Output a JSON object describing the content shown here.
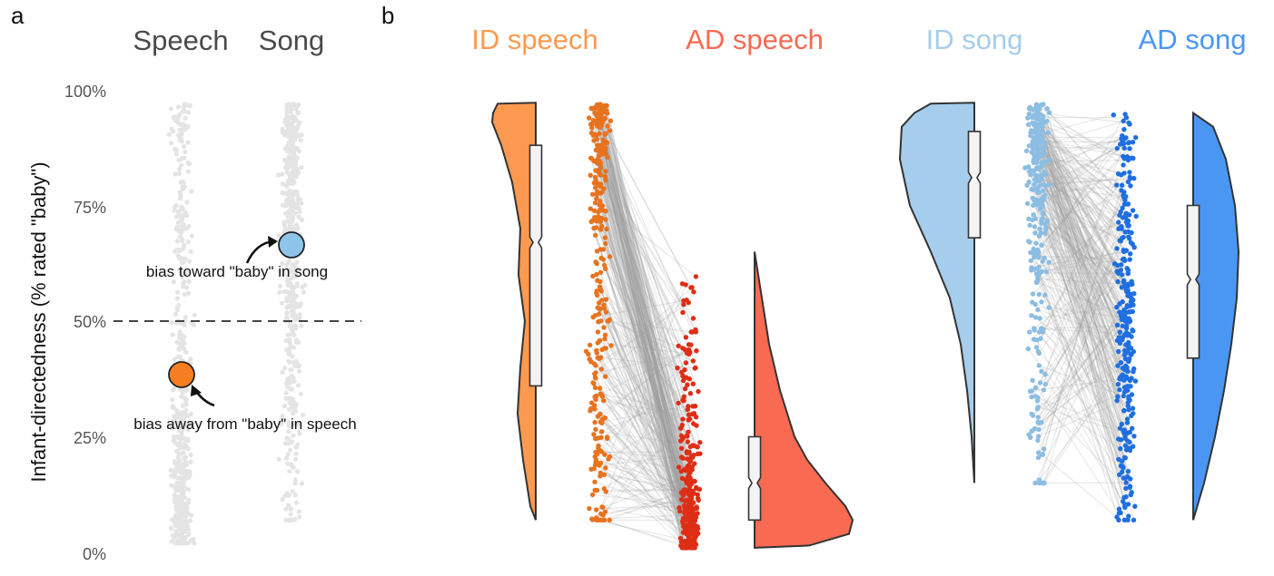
{
  "colors": {
    "id_speech": "#fb9a50",
    "ad_speech": "#f86a52",
    "id_song": "#a6cdec",
    "ad_song": "#4a97f3",
    "id_speech_dots": "#e8731f",
    "ad_speech_dots": "#de2e16",
    "id_song_dots": "#8cbde3",
    "ad_song_dots": "#1f6fe0",
    "bias_speech": "#f57f20",
    "bias_song": "#8ec4ea",
    "jitter_gray": "#e4e4e4"
  },
  "panel_a": {
    "letter": "a",
    "groups": [
      "Speech",
      "Song"
    ],
    "ylabel": "Infant-directedness (% rated \"baby\")",
    "y_ticks": [
      "100%",
      "75%",
      "50%",
      "25%",
      "0%"
    ],
    "reference_line": 50,
    "annotations": [
      "bias toward \"baby\" in song",
      "bias away from \"baby\" in speech"
    ]
  },
  "panel_b": {
    "letter": "b",
    "conditions": [
      "ID speech",
      "AD speech",
      "ID song",
      "AD song"
    ]
  },
  "chart_data": [
    {
      "type": "scatter",
      "panel": "a",
      "categories": [
        "Speech",
        "Song"
      ],
      "ylim": [
        0,
        100
      ],
      "reference_line": 50,
      "series": [
        {
          "name": "Speech",
          "mean": 39
        },
        {
          "name": "Song",
          "mean": 67
        }
      ],
      "annotations": [
        "bias toward \"baby\" in song",
        "bias away from \"baby\" in speech"
      ]
    },
    {
      "type": "violin",
      "panel": "b",
      "categories": [
        "ID speech",
        "AD speech",
        "ID song",
        "AD song"
      ],
      "ylim": [
        0,
        100
      ],
      "series": [
        {
          "name": "ID speech",
          "range": [
            7,
            97
          ],
          "q1": 36,
          "median": 67,
          "q3": 88
        },
        {
          "name": "AD speech",
          "range": [
            1,
            65
          ],
          "q1": 7,
          "median": 15,
          "q3": 25
        },
        {
          "name": "ID song",
          "range": [
            15,
            97
          ],
          "q1": 68,
          "median": 81,
          "q3": 91
        },
        {
          "name": "AD song",
          "range": [
            7,
            95
          ],
          "q1": 42,
          "median": 59,
          "q3": 75
        }
      ]
    }
  ]
}
